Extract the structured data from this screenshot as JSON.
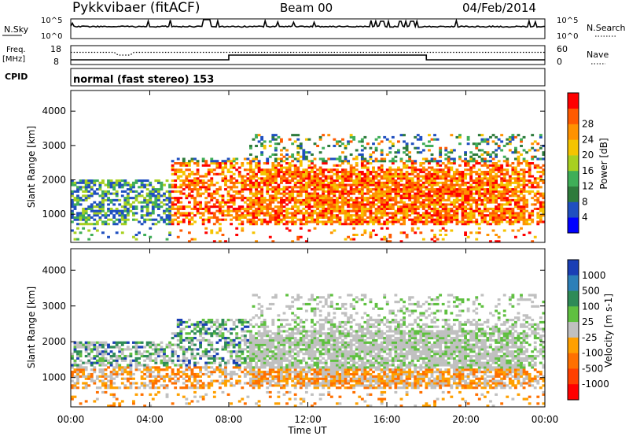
{
  "header": {
    "station": "Pykkvibaer (fitACF)",
    "beam": "Beam 00",
    "date": "04/Feb/2014"
  },
  "noise_panel": {
    "left_label": "N.Sky",
    "right_label": "N.Search",
    "left_ticks": [
      "10^5",
      "10^0"
    ],
    "right_ticks": [
      "10^5",
      "10^0"
    ]
  },
  "freq_panel": {
    "left_label_line1": "Freq.",
    "left_label_line2": "[MHz]",
    "right_label": "Nave",
    "left_ticks": [
      "18",
      "8"
    ],
    "right_ticks": [
      "60",
      "0"
    ]
  },
  "cpid_panel": {
    "label": "CPID",
    "text": "normal (fast stereo) 153"
  },
  "time_axis": {
    "label": "Time UT",
    "ticks": [
      "00:00",
      "04:00",
      "08:00",
      "12:00",
      "16:00",
      "20:00",
      "00:00"
    ]
  },
  "chart_data": [
    {
      "type": "heatmap",
      "title": "",
      "xlabel": "",
      "ylabel": "Slant Range [km]",
      "xlim_hours": [
        0,
        24
      ],
      "ylim_km": [
        180,
        4600
      ],
      "y_ticks": [
        1000,
        2000,
        3000,
        4000
      ],
      "colorbar": {
        "label": "Power [dB]",
        "ticks": [
          "4",
          "8",
          "12",
          "16",
          "20",
          "24",
          "28"
        ],
        "colors": [
          "#0000ff",
          "#1f4fc0",
          "#2e7b3c",
          "#3fae58",
          "#a8d020",
          "#f5c400",
          "#ff9200",
          "#ff5a00",
          "#ff0000"
        ]
      }
    },
    {
      "type": "heatmap",
      "title": "",
      "xlabel": "Time UT",
      "ylabel": "Slant Range [km]",
      "xlim_hours": [
        0,
        24
      ],
      "ylim_km": [
        180,
        4600
      ],
      "y_ticks": [
        1000,
        2000,
        3000,
        4000
      ],
      "colorbar": {
        "label": "Velocity [m s-1]",
        "ticks": [
          "1000",
          "500",
          "100",
          "25",
          "-25",
          "-100",
          "-500",
          "-1000"
        ],
        "colors": [
          "#1a3fb5",
          "#2c7fb8",
          "#2e8b57",
          "#5fc040",
          "#c0c0c0",
          "#ffa000",
          "#ff7000",
          "#ff4000",
          "#ff0000"
        ]
      }
    }
  ]
}
